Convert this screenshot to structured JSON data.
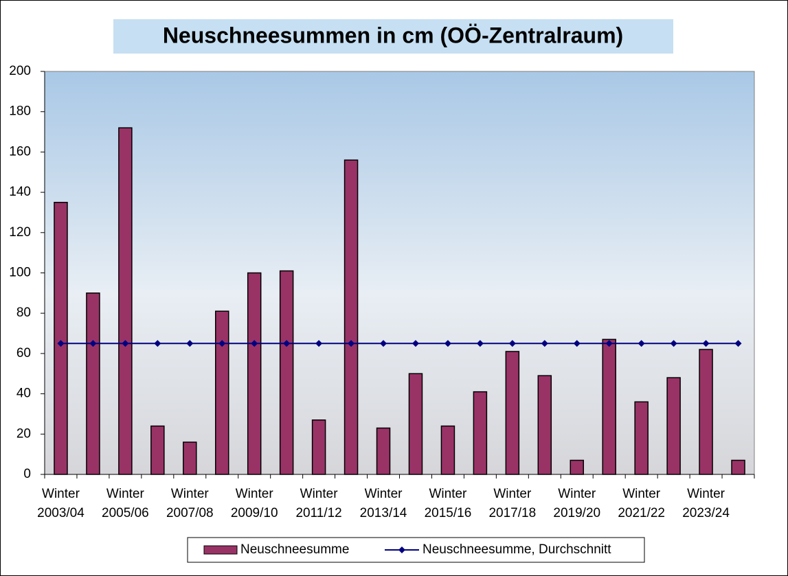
{
  "chart_data": {
    "type": "bar",
    "title": "Neuschneesummen in cm (OÖ-Zentralraum)",
    "categories": [
      "Winter 2003/04",
      null,
      "Winter 2005/06",
      null,
      "Winter 2007/08",
      null,
      "Winter 2009/10",
      null,
      "Winter 2011/12",
      null,
      "Winter 2013/14",
      null,
      "Winter 2015/16",
      null,
      "Winter 2017/18",
      null,
      "Winter 2019/20",
      null,
      "Winter 2021/22",
      null,
      "Winter 2023/24",
      null
    ],
    "series": [
      {
        "name": "Neuschneesumme",
        "type": "bar",
        "color": "#993366",
        "values": [
          135,
          90,
          172,
          24,
          16,
          81,
          100,
          101,
          27,
          156,
          23,
          50,
          24,
          41,
          61,
          49,
          7,
          67,
          36,
          48,
          62,
          7
        ]
      },
      {
        "name": "Neuschneesumme, Durchschnitt",
        "type": "line",
        "color": "#000080",
        "values": [
          65,
          65,
          65,
          65,
          65,
          65,
          65,
          65,
          65,
          65,
          65,
          65,
          65,
          65,
          65,
          65,
          65,
          65,
          65,
          65,
          65,
          65
        ]
      }
    ],
    "ylim": [
      0,
      200
    ],
    "yticks": [
      0,
      20,
      40,
      60,
      80,
      100,
      120,
      140,
      160,
      180,
      200
    ],
    "legend": "bottom"
  }
}
